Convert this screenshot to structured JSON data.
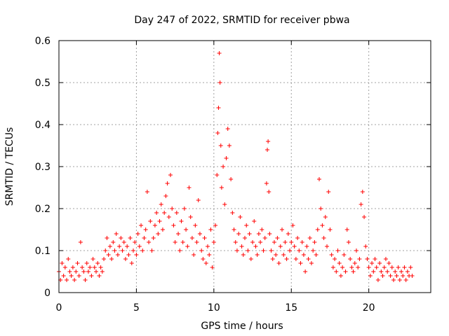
{
  "chart_data": {
    "type": "scatter",
    "title": "Day 247 of 2022, SRMTID for receiver pbwa",
    "xlabel": "GPS time / hours",
    "ylabel": "SRMTID / TECUs",
    "xlim": [
      0,
      24
    ],
    "ylim": [
      0,
      0.6
    ],
    "xticks": [
      0,
      5,
      10,
      15,
      20
    ],
    "yticks": [
      0,
      0.1,
      0.2,
      0.3,
      0.4,
      0.5,
      0.6
    ],
    "xtick_labels": [
      "0",
      "5",
      "10",
      "15",
      "20"
    ],
    "ytick_labels": [
      "0",
      "0.1",
      "0.2",
      "0.3",
      "0.4",
      "0.5",
      "0.6"
    ],
    "grid": true,
    "marker": "+",
    "color": "#ff0000",
    "series": [
      {
        "name": "SRMTID",
        "x_range": [
          0,
          22.8
        ],
        "points": [
          [
            0.0,
            0.05
          ],
          [
            0.1,
            0.03
          ],
          [
            0.2,
            0.07
          ],
          [
            0.3,
            0.04
          ],
          [
            0.4,
            0.06
          ],
          [
            0.5,
            0.03
          ],
          [
            0.6,
            0.08
          ],
          [
            0.7,
            0.05
          ],
          [
            0.8,
            0.04
          ],
          [
            0.9,
            0.06
          ],
          [
            1.0,
            0.03
          ],
          [
            1.1,
            0.05
          ],
          [
            1.2,
            0.07
          ],
          [
            1.3,
            0.04
          ],
          [
            1.4,
            0.12
          ],
          [
            1.5,
            0.06
          ],
          [
            1.6,
            0.05
          ],
          [
            1.7,
            0.03
          ],
          [
            1.8,
            0.07
          ],
          [
            1.9,
            0.05
          ],
          [
            2.0,
            0.06
          ],
          [
            2.1,
            0.04
          ],
          [
            2.2,
            0.08
          ],
          [
            2.3,
            0.06
          ],
          [
            2.4,
            0.05
          ],
          [
            2.5,
            0.07
          ],
          [
            2.6,
            0.04
          ],
          [
            2.7,
            0.06
          ],
          [
            2.8,
            0.05
          ],
          [
            2.9,
            0.08
          ],
          [
            3.0,
            0.1
          ],
          [
            3.1,
            0.13
          ],
          [
            3.2,
            0.09
          ],
          [
            3.3,
            0.11
          ],
          [
            3.4,
            0.08
          ],
          [
            3.5,
            0.12
          ],
          [
            3.6,
            0.1
          ],
          [
            3.7,
            0.14
          ],
          [
            3.8,
            0.09
          ],
          [
            3.9,
            0.11
          ],
          [
            4.0,
            0.13
          ],
          [
            4.1,
            0.1
          ],
          [
            4.2,
            0.12
          ],
          [
            4.3,
            0.08
          ],
          [
            4.4,
            0.11
          ],
          [
            4.5,
            0.09
          ],
          [
            4.6,
            0.13
          ],
          [
            4.7,
            0.07
          ],
          [
            4.8,
            0.1
          ],
          [
            4.9,
            0.12
          ],
          [
            5.0,
            0.09
          ],
          [
            5.1,
            0.14
          ],
          [
            5.2,
            0.11
          ],
          [
            5.3,
            0.16
          ],
          [
            5.4,
            0.1
          ],
          [
            5.5,
            0.13
          ],
          [
            5.6,
            0.15
          ],
          [
            5.7,
            0.24
          ],
          [
            5.8,
            0.12
          ],
          [
            5.9,
            0.17
          ],
          [
            6.0,
            0.1
          ],
          [
            6.1,
            0.13
          ],
          [
            6.2,
            0.16
          ],
          [
            6.3,
            0.19
          ],
          [
            6.4,
            0.14
          ],
          [
            6.5,
            0.17
          ],
          [
            6.6,
            0.21
          ],
          [
            6.7,
            0.15
          ],
          [
            6.8,
            0.19
          ],
          [
            6.9,
            0.23
          ],
          [
            7.0,
            0.26
          ],
          [
            7.1,
            0.18
          ],
          [
            7.2,
            0.28
          ],
          [
            7.3,
            0.2
          ],
          [
            7.4,
            0.16
          ],
          [
            7.5,
            0.12
          ],
          [
            7.6,
            0.19
          ],
          [
            7.7,
            0.14
          ],
          [
            7.8,
            0.1
          ],
          [
            7.9,
            0.17
          ],
          [
            8.0,
            0.12
          ],
          [
            8.1,
            0.2
          ],
          [
            8.2,
            0.15
          ],
          [
            8.3,
            0.11
          ],
          [
            8.4,
            0.25
          ],
          [
            8.5,
            0.18
          ],
          [
            8.6,
            0.13
          ],
          [
            8.7,
            0.09
          ],
          [
            8.8,
            0.16
          ],
          [
            8.9,
            0.12
          ],
          [
            9.0,
            0.22
          ],
          [
            9.1,
            0.14
          ],
          [
            9.2,
            0.1
          ],
          [
            9.3,
            0.08
          ],
          [
            9.4,
            0.13
          ],
          [
            9.5,
            0.07
          ],
          [
            9.6,
            0.11
          ],
          [
            9.7,
            0.09
          ],
          [
            9.8,
            0.15
          ],
          [
            9.9,
            0.06
          ],
          [
            10.0,
            0.12
          ],
          [
            10.1,
            0.16
          ],
          [
            10.2,
            0.28
          ],
          [
            10.25,
            0.38
          ],
          [
            10.3,
            0.44
          ],
          [
            10.35,
            0.57
          ],
          [
            10.4,
            0.5
          ],
          [
            10.45,
            0.35
          ],
          [
            10.5,
            0.25
          ],
          [
            10.6,
            0.3
          ],
          [
            10.7,
            0.21
          ],
          [
            10.8,
            0.32
          ],
          [
            10.9,
            0.39
          ],
          [
            11.0,
            0.35
          ],
          [
            11.1,
            0.27
          ],
          [
            11.2,
            0.19
          ],
          [
            11.3,
            0.15
          ],
          [
            11.4,
            0.12
          ],
          [
            11.5,
            0.1
          ],
          [
            11.6,
            0.14
          ],
          [
            11.7,
            0.18
          ],
          [
            11.8,
            0.11
          ],
          [
            11.9,
            0.09
          ],
          [
            12.0,
            0.13
          ],
          [
            12.1,
            0.16
          ],
          [
            12.2,
            0.1
          ],
          [
            12.3,
            0.14
          ],
          [
            12.4,
            0.08
          ],
          [
            12.5,
            0.12
          ],
          [
            12.6,
            0.17
          ],
          [
            12.7,
            0.11
          ],
          [
            12.8,
            0.09
          ],
          [
            12.9,
            0.14
          ],
          [
            13.0,
            0.12
          ],
          [
            13.1,
            0.15
          ],
          [
            13.2,
            0.1
          ],
          [
            13.3,
            0.13
          ],
          [
            13.4,
            0.26
          ],
          [
            13.45,
            0.34
          ],
          [
            13.5,
            0.36
          ],
          [
            13.55,
            0.24
          ],
          [
            13.6,
            0.14
          ],
          [
            13.7,
            0.1
          ],
          [
            13.8,
            0.08
          ],
          [
            13.9,
            0.12
          ],
          [
            14.0,
            0.09
          ],
          [
            14.1,
            0.13
          ],
          [
            14.2,
            0.07
          ],
          [
            14.3,
            0.11
          ],
          [
            14.4,
            0.15
          ],
          [
            14.5,
            0.09
          ],
          [
            14.6,
            0.12
          ],
          [
            14.7,
            0.08
          ],
          [
            14.8,
            0.14
          ],
          [
            14.9,
            0.1
          ],
          [
            15.0,
            0.12
          ],
          [
            15.1,
            0.16
          ],
          [
            15.2,
            0.11
          ],
          [
            15.3,
            0.08
          ],
          [
            15.4,
            0.13
          ],
          [
            15.5,
            0.1
          ],
          [
            15.6,
            0.07
          ],
          [
            15.7,
            0.12
          ],
          [
            15.8,
            0.09
          ],
          [
            15.9,
            0.05
          ],
          [
            16.0,
            0.11
          ],
          [
            16.1,
            0.08
          ],
          [
            16.2,
            0.13
          ],
          [
            16.3,
            0.07
          ],
          [
            16.4,
            0.1
          ],
          [
            16.5,
            0.12
          ],
          [
            16.6,
            0.09
          ],
          [
            16.7,
            0.15
          ],
          [
            16.8,
            0.27
          ],
          [
            16.9,
            0.2
          ],
          [
            17.0,
            0.16
          ],
          [
            17.1,
            0.13
          ],
          [
            17.2,
            0.18
          ],
          [
            17.3,
            0.11
          ],
          [
            17.4,
            0.24
          ],
          [
            17.5,
            0.15
          ],
          [
            17.6,
            0.09
          ],
          [
            17.7,
            0.06
          ],
          [
            17.8,
            0.08
          ],
          [
            17.9,
            0.05
          ],
          [
            18.0,
            0.1
          ],
          [
            18.1,
            0.07
          ],
          [
            18.2,
            0.04
          ],
          [
            18.3,
            0.06
          ],
          [
            18.4,
            0.09
          ],
          [
            18.5,
            0.05
          ],
          [
            18.6,
            0.15
          ],
          [
            18.7,
            0.12
          ],
          [
            18.8,
            0.08
          ],
          [
            18.9,
            0.06
          ],
          [
            19.0,
            0.05
          ],
          [
            19.1,
            0.07
          ],
          [
            19.2,
            0.1
          ],
          [
            19.3,
            0.06
          ],
          [
            19.4,
            0.08
          ],
          [
            19.5,
            0.21
          ],
          [
            19.6,
            0.24
          ],
          [
            19.7,
            0.18
          ],
          [
            19.8,
            0.11
          ],
          [
            19.9,
            0.08
          ],
          [
            20.0,
            0.06
          ],
          [
            20.1,
            0.04
          ],
          [
            20.2,
            0.07
          ],
          [
            20.3,
            0.05
          ],
          [
            20.4,
            0.08
          ],
          [
            20.5,
            0.06
          ],
          [
            20.6,
            0.03
          ],
          [
            20.7,
            0.07
          ],
          [
            20.8,
            0.05
          ],
          [
            20.9,
            0.04
          ],
          [
            21.0,
            0.06
          ],
          [
            21.1,
            0.08
          ],
          [
            21.2,
            0.05
          ],
          [
            21.3,
            0.07
          ],
          [
            21.4,
            0.04
          ],
          [
            21.5,
            0.06
          ],
          [
            21.6,
            0.03
          ],
          [
            21.7,
            0.05
          ],
          [
            21.8,
            0.04
          ],
          [
            21.9,
            0.06
          ],
          [
            22.0,
            0.03
          ],
          [
            22.1,
            0.05
          ],
          [
            22.2,
            0.04
          ],
          [
            22.3,
            0.06
          ],
          [
            22.4,
            0.03
          ],
          [
            22.5,
            0.05
          ],
          [
            22.6,
            0.04
          ],
          [
            22.7,
            0.06
          ],
          [
            22.8,
            0.04
          ]
        ]
      }
    ]
  }
}
